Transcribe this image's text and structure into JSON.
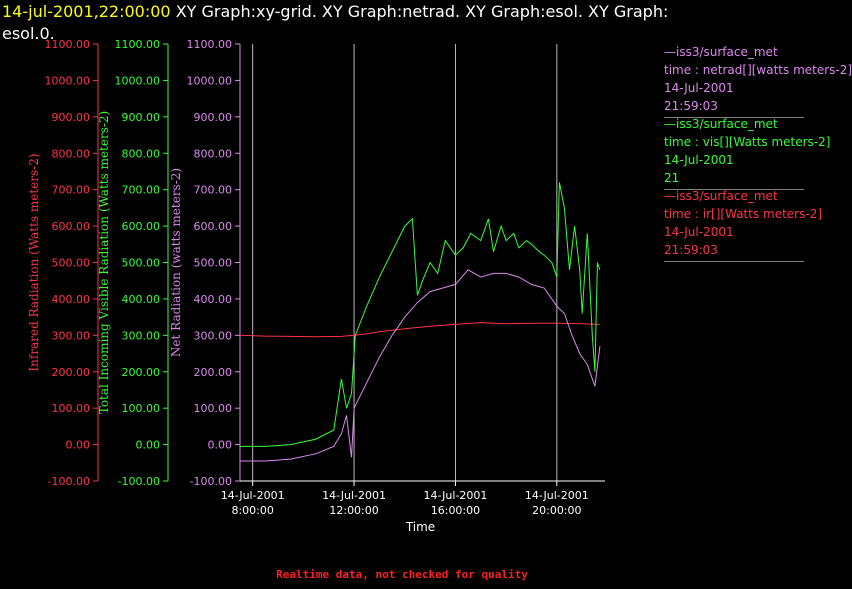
{
  "header": {
    "date": "14-jul-2001,22:00:00",
    "graphs_line1": "  XY Graph:xy-grid.  XY Graph:netrad.  XY Graph:esol.  XY Graph:",
    "graphs_line2": "esol.0."
  },
  "footer": {
    "note": "Realtime data, not checked for quality"
  },
  "legend": [
    {
      "lines": [
        "—iss3/surface_met",
        "time : netrad[][watts meters-2]",
        "14-Jul-2001",
        "21:59:03"
      ],
      "color": "#dd88ee"
    },
    {
      "lines": [
        "—iss3/surface_met",
        "time : vis[][Watts meters-2]",
        "14-Jul-2001",
        "21"
      ],
      "color": "#33ff33"
    },
    {
      "lines": [
        "—iss3/surface_met",
        "time : ir[][Watts meters-2]",
        "14-Jul-2001",
        "21:59:03"
      ],
      "color": "#ff3344"
    }
  ],
  "chart_data": {
    "type": "line",
    "xlabel": "Time",
    "x_ticks": [
      {
        "hour": 8,
        "date": "14-Jul-2001",
        "time": "8:00:00"
      },
      {
        "hour": 12,
        "date": "14-Jul-2001",
        "time": "12:00:00"
      },
      {
        "hour": 16,
        "date": "14-Jul-2001",
        "time": "16:00:00"
      },
      {
        "hour": 20,
        "date": "14-Jul-2001",
        "time": "20:00:00"
      }
    ],
    "xlim_hours": [
      7.5,
      21.9
    ],
    "ylim": [
      -100,
      1100
    ],
    "y_ticks": [
      -100,
      0,
      100,
      200,
      300,
      400,
      500,
      600,
      700,
      800,
      900,
      1000,
      1100
    ],
    "axes": [
      {
        "label": "Infrared Radiation (Watts meters-2)",
        "color": "#ff3344"
      },
      {
        "label": "Total Incoming Visible Radiation (Watts meters-2)",
        "color": "#33ff33"
      },
      {
        "label": "Net Radiation (watts meters-2)",
        "color": "#dd88ee"
      }
    ],
    "series": [
      {
        "name": "ir",
        "color": "#ff3344",
        "x": [
          7.5,
          8.5,
          9.5,
          10.5,
          11.5,
          12.0,
          12.5,
          13.0,
          14.0,
          15.0,
          16.0,
          17.0,
          18.0,
          19.0,
          20.0,
          21.0,
          21.7
        ],
        "y": [
          300,
          298,
          297,
          296,
          297,
          300,
          304,
          310,
          318,
          325,
          330,
          335,
          332,
          333,
          333,
          332,
          330
        ]
      },
      {
        "name": "vis",
        "color": "#33ff33",
        "x": [
          7.5,
          8.5,
          9.5,
          10.5,
          11.2,
          11.5,
          11.7,
          11.9,
          12.0,
          12.05,
          12.5,
          13.0,
          13.5,
          14.0,
          14.3,
          14.5,
          14.7,
          15.0,
          15.3,
          15.6,
          16.0,
          16.3,
          16.6,
          17.0,
          17.3,
          17.5,
          17.8,
          18.0,
          18.3,
          18.5,
          18.8,
          19.0,
          19.3,
          19.5,
          19.8,
          20.0,
          20.1,
          20.3,
          20.5,
          20.7,
          20.9,
          21.0,
          21.2,
          21.4,
          21.5,
          21.6,
          21.7
        ],
        "y": [
          -5,
          -5,
          0,
          15,
          40,
          180,
          100,
          140,
          250,
          300,
          380,
          460,
          530,
          600,
          620,
          410,
          450,
          500,
          470,
          560,
          520,
          540,
          580,
          560,
          620,
          530,
          600,
          560,
          580,
          540,
          560,
          550,
          530,
          520,
          500,
          460,
          720,
          650,
          480,
          600,
          480,
          360,
          580,
          300,
          200,
          500,
          480
        ]
      },
      {
        "name": "netrad",
        "color": "#dd88ee",
        "x": [
          7.5,
          8.5,
          9.5,
          10.5,
          11.2,
          11.5,
          11.7,
          11.9,
          12.0,
          12.5,
          13.0,
          13.5,
          14.0,
          14.5,
          15.0,
          15.5,
          16.0,
          16.5,
          17.0,
          17.5,
          18.0,
          18.5,
          19.0,
          19.5,
          20.0,
          20.3,
          20.6,
          20.9,
          21.2,
          21.5,
          21.7
        ],
        "y": [
          -45,
          -45,
          -40,
          -25,
          -5,
          30,
          80,
          -35,
          100,
          170,
          240,
          300,
          350,
          390,
          420,
          430,
          440,
          480,
          460,
          470,
          470,
          460,
          440,
          430,
          380,
          360,
          300,
          250,
          220,
          160,
          270
        ]
      }
    ]
  }
}
